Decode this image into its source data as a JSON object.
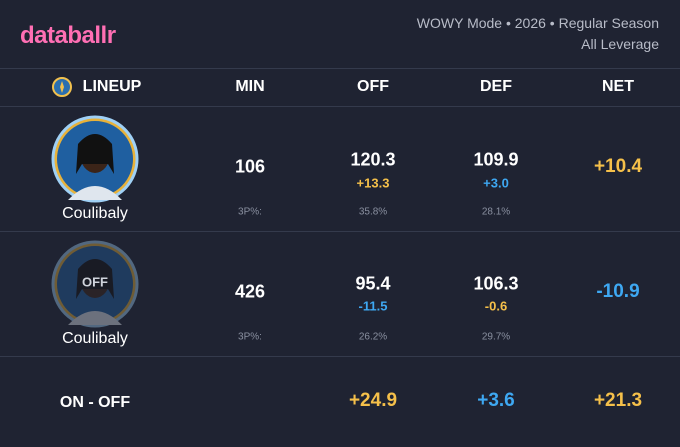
{
  "header": {
    "brand": "databallr",
    "subtitle": "WOWY Mode • 2026 • Regular Season",
    "leverage": "All Leverage"
  },
  "table": {
    "columns": [
      "LINEUP",
      "MIN",
      "OFF",
      "DEF",
      "NET"
    ],
    "rows": [
      {
        "player": "Coulibaly",
        "min": "106",
        "off": "120.3",
        "off_diff": "+13.3",
        "def": "109.9",
        "def_diff": "+3.0",
        "net": "+10.4",
        "tp_label": "3P%:",
        "tp_off": "35.8%",
        "tp_def": "28.1%"
      },
      {
        "player": "Coulibaly",
        "badge": "OFF",
        "min": "426",
        "off": "95.4",
        "off_diff": "-11.5",
        "def": "106.3",
        "def_diff": "-0.6",
        "net": "-10.9",
        "tp_label": "3P%:",
        "tp_off": "26.2%",
        "tp_def": "29.7%"
      }
    ],
    "summary": {
      "label": "ON - OFF",
      "off": "+24.9",
      "def": "+3.6",
      "net": "+21.3"
    }
  }
}
